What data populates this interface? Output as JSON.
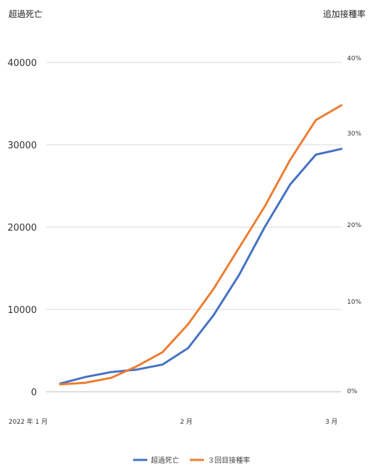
{
  "chart_data": {
    "type": "line",
    "left_axis_title": "超過死亡",
    "right_axis_title": "追加接種率",
    "x_tick_labels": [
      "2022 年 1 月",
      "2 月",
      "3 月"
    ],
    "y_left": {
      "ticks": [
        "0",
        "10000",
        "20000",
        "30000",
        "40000"
      ],
      "ylim": [
        0,
        40000
      ]
    },
    "y_right": {
      "ticks": [
        "0%",
        "10%",
        "20%",
        "30%",
        "40%"
      ],
      "ylim": [
        0,
        40
      ]
    },
    "x": [
      0,
      1,
      2,
      3,
      4,
      5,
      6,
      7,
      8,
      9,
      10,
      11
    ],
    "grid": true,
    "legend_position": "bottom",
    "series": [
      {
        "name": "超過死亡",
        "axis": "left",
        "color": "#4472c4",
        "values": [
          1000,
          1800,
          2400,
          2700,
          3300,
          5300,
          9300,
          14200,
          20000,
          25200,
          28800,
          29500
        ]
      },
      {
        "name": "３回目接種率",
        "axis": "left",
        "color": "#ed7d31",
        "values": [
          900,
          1100,
          1700,
          3100,
          4800,
          8200,
          12500,
          17500,
          22500,
          28200,
          33000,
          34800
        ]
      }
    ]
  }
}
